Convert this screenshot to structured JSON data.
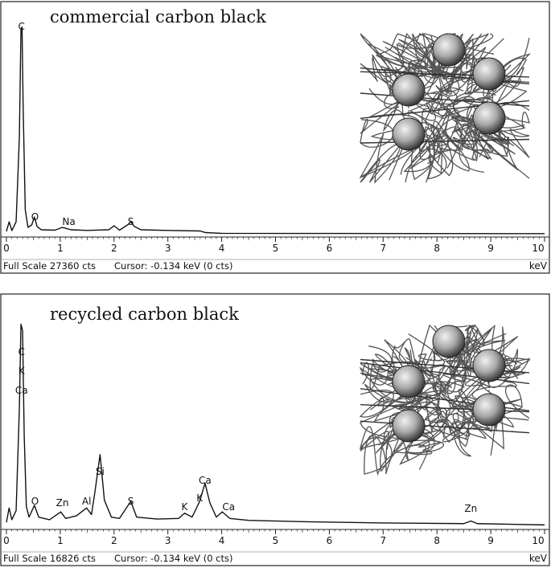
{
  "chart_data": [
    {
      "type": "line",
      "title": "commercial carbon black",
      "xlabel": "keV",
      "xlim": [
        0,
        10
      ],
      "x_ticks": [
        "0",
        "1",
        "2",
        "3",
        "4",
        "5",
        "6",
        "7",
        "8",
        "9",
        "10"
      ],
      "status_full_scale": "Full Scale 27360 cts",
      "status_cursor": "Cursor: -0.134 keV (0 cts)",
      "unit": "keV",
      "ymax_cts": 27360,
      "series": [
        {
          "values": [
            [
              0.0,
              300
            ],
            [
              0.05,
              1500
            ],
            [
              0.1,
              400
            ],
            [
              0.18,
              1500
            ],
            [
              0.24,
              12000
            ],
            [
              0.27,
              25500
            ],
            [
              0.29,
              25800
            ],
            [
              0.31,
              16000
            ],
            [
              0.35,
              3000
            ],
            [
              0.4,
              800
            ],
            [
              0.47,
              1100
            ],
            [
              0.52,
              2100
            ],
            [
              0.57,
              900
            ],
            [
              0.65,
              500
            ],
            [
              0.9,
              450
            ],
            [
              1.04,
              800
            ],
            [
              1.2,
              500
            ],
            [
              1.5,
              420
            ],
            [
              1.9,
              500
            ],
            [
              2.0,
              1000
            ],
            [
              2.1,
              450
            ],
            [
              2.25,
              1100
            ],
            [
              2.31,
              1500
            ],
            [
              2.38,
              900
            ],
            [
              2.5,
              500
            ],
            [
              3.0,
              420
            ],
            [
              3.6,
              350
            ],
            [
              3.7,
              150
            ],
            [
              4.0,
              60
            ],
            [
              6.0,
              40
            ],
            [
              8.0,
              30
            ],
            [
              10.0,
              20
            ]
          ]
        }
      ],
      "peak_labels": [
        {
          "text": "C",
          "energy": 0.28
        },
        {
          "text": "O",
          "energy": 0.53
        },
        {
          "text": "Na",
          "energy": 1.04
        },
        {
          "text": "S",
          "energy": 2.31
        }
      ]
    },
    {
      "type": "line",
      "title": "recycled carbon black",
      "xlabel": "keV",
      "xlim": [
        0,
        10
      ],
      "x_ticks": [
        "0",
        "1",
        "2",
        "3",
        "4",
        "5",
        "6",
        "7",
        "8",
        "9",
        "10"
      ],
      "status_full_scale": "Full Scale 16826 cts",
      "status_cursor": "Cursor: -0.134 keV (0 cts)",
      "unit": "keV",
      "ymax_cts": 16826,
      "series": [
        {
          "values": [
            [
              0.0,
              300
            ],
            [
              0.05,
              1400
            ],
            [
              0.1,
              500
            ],
            [
              0.18,
              1200
            ],
            [
              0.24,
              9000
            ],
            [
              0.27,
              15500
            ],
            [
              0.3,
              15000
            ],
            [
              0.33,
              7000
            ],
            [
              0.37,
              1500
            ],
            [
              0.42,
              700
            ],
            [
              0.52,
              1600
            ],
            [
              0.6,
              700
            ],
            [
              0.8,
              500
            ],
            [
              1.01,
              1100
            ],
            [
              1.1,
              600
            ],
            [
              1.3,
              800
            ],
            [
              1.49,
              1400
            ],
            [
              1.58,
              900
            ],
            [
              1.64,
              2500
            ],
            [
              1.74,
              5500
            ],
            [
              1.82,
              2000
            ],
            [
              1.95,
              700
            ],
            [
              2.1,
              600
            ],
            [
              2.31,
              1900
            ],
            [
              2.42,
              700
            ],
            [
              2.8,
              550
            ],
            [
              3.2,
              600
            ],
            [
              3.31,
              1000
            ],
            [
              3.45,
              700
            ],
            [
              3.59,
              1900
            ],
            [
              3.69,
              3300
            ],
            [
              3.78,
              1800
            ],
            [
              3.9,
              700
            ],
            [
              4.01,
              1100
            ],
            [
              4.15,
              600
            ],
            [
              4.5,
              450
            ],
            [
              5.5,
              350
            ],
            [
              7.0,
              250
            ],
            [
              8.5,
              200
            ],
            [
              8.63,
              400
            ],
            [
              8.75,
              200
            ],
            [
              10.0,
              100
            ]
          ]
        }
      ],
      "peak_labels": [
        {
          "text": "C",
          "energy": 0.28
        },
        {
          "text": "K",
          "energy": 0.28
        },
        {
          "text": "Ca",
          "energy": 0.28
        },
        {
          "text": "O",
          "energy": 0.53
        },
        {
          "text": "Zn",
          "energy": 1.01
        },
        {
          "text": "Al",
          "energy": 1.49
        },
        {
          "text": "Si",
          "energy": 1.74
        },
        {
          "text": "S",
          "energy": 2.31
        },
        {
          "text": "K",
          "energy": 3.31
        },
        {
          "text": "K",
          "energy": 3.59
        },
        {
          "text": "Ca",
          "energy": 3.69
        },
        {
          "text": "Ca",
          "energy": 4.01
        },
        {
          "text": "Zn",
          "energy": 8.63
        }
      ]
    }
  ],
  "colors": {
    "frame": "#222222",
    "spectrum": "#111111",
    "sphere_light": "#f2f2f2",
    "sphere_mid": "#a8a8a8",
    "sphere_dark": "#3a3a3a",
    "chain": "#555555"
  }
}
